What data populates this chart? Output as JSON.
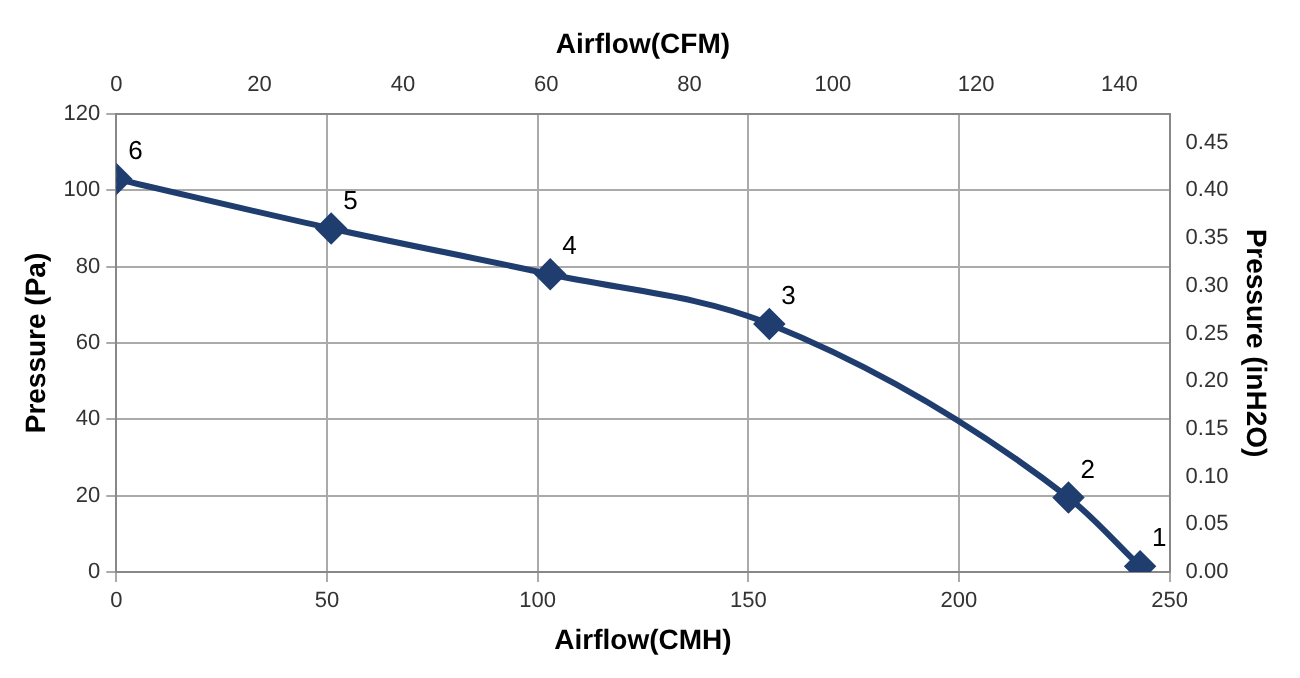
{
  "chart_data": {
    "type": "line",
    "xlabel": "Airflow(CMH)",
    "ylabel": "Pressure (Pa)",
    "x2label": "Airflow(CFM)",
    "y2label": "Pressure (inH2O)",
    "series": [
      {
        "color": "#1f3d6e",
        "x": [
          0,
          51,
          103,
          155,
          226,
          243
        ],
        "values": [
          103,
          90,
          78,
          65,
          19.5,
          1.5
        ]
      }
    ],
    "annotations": [
      {
        "text": "6",
        "x": 0,
        "y": 103
      },
      {
        "text": "5",
        "x": 51,
        "y": 90
      },
      {
        "text": "4",
        "x": 103,
        "y": 78
      },
      {
        "text": "3",
        "x": 155,
        "y": 65
      },
      {
        "text": "2",
        "x": 226,
        "y": 19.5
      },
      {
        "text": "1",
        "x": 243,
        "y": 1.5
      }
    ],
    "xlim": [
      0,
      250
    ],
    "xticks": [
      0,
      50,
      100,
      150,
      200,
      250
    ],
    "ylim": [
      0,
      120
    ],
    "yticks": [
      0,
      20,
      40,
      60,
      80,
      100,
      120
    ],
    "x2lim": [
      0,
      147
    ],
    "x2ticks": [
      0,
      20,
      40,
      60,
      80,
      100,
      120,
      140
    ],
    "y2lim": [
      0,
      0.48
    ],
    "y2ticks": [
      {
        "value": 0,
        "label": "0.00"
      },
      0.05,
      {
        "value": 0.1,
        "label": "0.10"
      },
      0.15,
      {
        "value": 0.2,
        "label": "0.20"
      },
      0.25,
      {
        "value": 0.3,
        "label": "0.30"
      },
      0.35,
      {
        "value": 0.4,
        "label": "0.40"
      },
      0.45
    ],
    "grid": true,
    "legend": false,
    "marker": "diamond",
    "line_style": "solid"
  }
}
